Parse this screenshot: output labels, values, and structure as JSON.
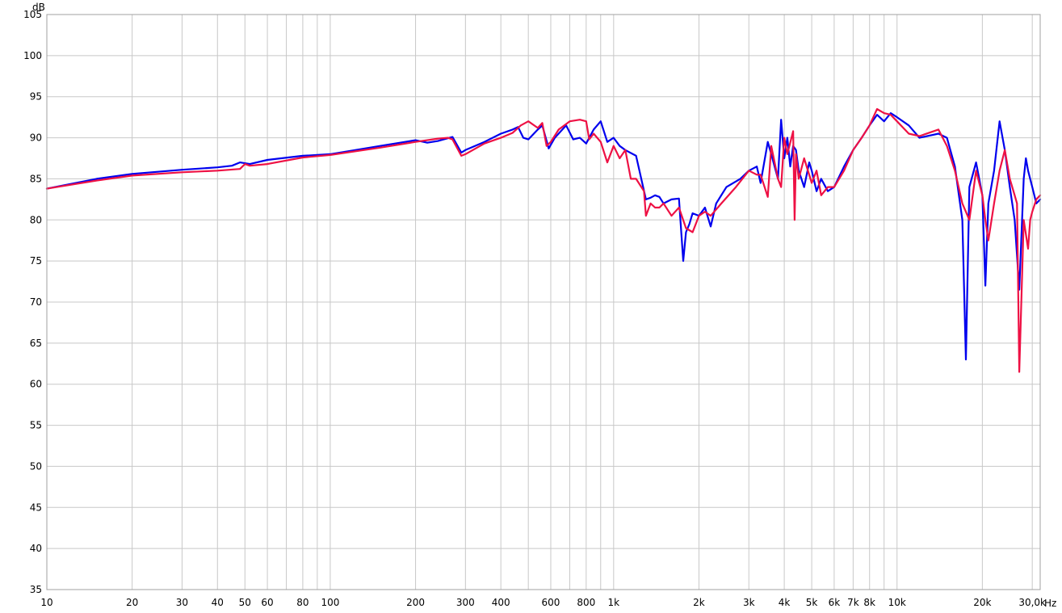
{
  "chart_data": {
    "type": "line",
    "title": "",
    "xlabel": "",
    "ylabel": "",
    "x_unit": "Hz",
    "y_unit": "dB",
    "x_scale": "log",
    "xlim": [
      10,
      32000
    ],
    "ylim": [
      35,
      105
    ],
    "grid": true,
    "legend": "none",
    "y_ticks": [
      35,
      40,
      45,
      50,
      55,
      60,
      65,
      70,
      75,
      80,
      85,
      90,
      95,
      100,
      105
    ],
    "x_ticks": [
      {
        "value": 10,
        "label": "10"
      },
      {
        "value": 20,
        "label": "20"
      },
      {
        "value": 30,
        "label": "30"
      },
      {
        "value": 40,
        "label": "40"
      },
      {
        "value": 50,
        "label": "50"
      },
      {
        "value": 60,
        "label": "60"
      },
      {
        "value": 80,
        "label": "80"
      },
      {
        "value": 100,
        "label": "100"
      },
      {
        "value": 200,
        "label": "200"
      },
      {
        "value": 300,
        "label": "300"
      },
      {
        "value": 400,
        "label": "400"
      },
      {
        "value": 600,
        "label": "600"
      },
      {
        "value": 800,
        "label": "800"
      },
      {
        "value": 1000,
        "label": "1k"
      },
      {
        "value": 2000,
        "label": "2k"
      },
      {
        "value": 3000,
        "label": "3k"
      },
      {
        "value": 4000,
        "label": "4k"
      },
      {
        "value": 5000,
        "label": "5k"
      },
      {
        "value": 6000,
        "label": "6k"
      },
      {
        "value": 7000,
        "label": "7k"
      },
      {
        "value": 8000,
        "label": "8k"
      },
      {
        "value": 10000,
        "label": "10k"
      },
      {
        "value": 20000,
        "label": "20k"
      },
      {
        "value": 30000,
        "label": "30,0k"
      }
    ],
    "x_minor_gridlines": [
      70,
      90,
      500,
      700,
      900,
      9000
    ],
    "series": [
      {
        "color": "#0000ee",
        "x": [
          10,
          15,
          20,
          30,
          40,
          45,
          48,
          52,
          60,
          80,
          100,
          150,
          200,
          220,
          240,
          270,
          290,
          300,
          350,
          400,
          440,
          460,
          480,
          500,
          540,
          560,
          590,
          620,
          680,
          720,
          760,
          800,
          850,
          900,
          950,
          1000,
          1050,
          1100,
          1200,
          1300,
          1350,
          1400,
          1450,
          1500,
          1600,
          1700,
          1760,
          1800,
          1850,
          1900,
          2000,
          2100,
          2200,
          2300,
          2500,
          2800,
          3000,
          3200,
          3300,
          3500,
          3600,
          3800,
          3900,
          4000,
          4100,
          4200,
          4300,
          4400,
          4500,
          4700,
          4900,
          5000,
          5200,
          5400,
          5700,
          6000,
          6500,
          7000,
          7500,
          8000,
          8500,
          9000,
          9500,
          10000,
          11000,
          12000,
          14000,
          15000,
          16000,
          17000,
          17500,
          18000,
          19000,
          20000,
          20500,
          21000,
          22000,
          23000,
          24000,
          25000,
          26000,
          27000,
          28000,
          28500,
          29000,
          30000,
          31000,
          32000
        ],
        "y": [
          83.8,
          85.0,
          85.6,
          86.1,
          86.4,
          86.6,
          87.0,
          86.8,
          87.3,
          87.8,
          88.0,
          89.0,
          89.7,
          89.4,
          89.6,
          90.1,
          88.2,
          88.5,
          89.5,
          90.5,
          91.0,
          91.3,
          90.0,
          89.8,
          91.0,
          91.5,
          88.7,
          90.0,
          91.5,
          89.8,
          90.0,
          89.3,
          91.0,
          92.0,
          89.5,
          90.0,
          89.0,
          88.5,
          87.8,
          82.5,
          82.7,
          83.0,
          82.8,
          82.0,
          82.5,
          82.6,
          75.0,
          78.5,
          79.5,
          80.8,
          80.5,
          81.5,
          79.2,
          82.0,
          84.0,
          85.0,
          86.0,
          86.5,
          84.5,
          89.5,
          88.0,
          85.0,
          92.2,
          87.5,
          90.0,
          86.5,
          89.0,
          88.5,
          86.0,
          84.0,
          87.0,
          86.0,
          83.5,
          85.0,
          83.5,
          84.0,
          86.5,
          88.5,
          90.0,
          91.5,
          92.8,
          92.0,
          93.0,
          92.5,
          91.5,
          90.0,
          90.5,
          90.0,
          86.5,
          80.0,
          63.0,
          84.0,
          87.0,
          83.0,
          72.0,
          82.0,
          86.0,
          92.0,
          88.5,
          84.0,
          80.0,
          71.5,
          85.0,
          87.5,
          86.0,
          84.0,
          82.0,
          82.5
        ]
      },
      {
        "color": "#ee1144",
        "x": [
          10,
          15,
          20,
          30,
          40,
          48,
          50,
          52,
          60,
          80,
          100,
          150,
          200,
          240,
          260,
          270,
          290,
          300,
          350,
          400,
          440,
          470,
          500,
          540,
          560,
          580,
          600,
          640,
          700,
          760,
          800,
          820,
          850,
          900,
          950,
          1000,
          1050,
          1100,
          1150,
          1200,
          1280,
          1300,
          1350,
          1400,
          1450,
          1500,
          1600,
          1700,
          1800,
          1900,
          2000,
          2100,
          2200,
          2400,
          2700,
          3000,
          3200,
          3300,
          3500,
          3600,
          3800,
          3900,
          4000,
          4100,
          4300,
          4350,
          4400,
          4500,
          4700,
          5000,
          5200,
          5400,
          5700,
          6000,
          6500,
          7000,
          7500,
          8000,
          8500,
          9000,
          9500,
          10000,
          11000,
          12000,
          14000,
          15000,
          16000,
          17000,
          18000,
          19000,
          20000,
          20500,
          21000,
          22000,
          23000,
          24000,
          25000,
          26000,
          26500,
          27000,
          28000,
          29000,
          29500,
          30000,
          31000,
          32000
        ],
        "y": [
          83.8,
          84.8,
          85.4,
          85.8,
          86.0,
          86.2,
          86.8,
          86.6,
          86.8,
          87.6,
          87.9,
          88.8,
          89.5,
          89.9,
          90.0,
          89.8,
          87.8,
          88.0,
          89.3,
          90.0,
          90.6,
          91.5,
          92.0,
          91.2,
          91.8,
          89.0,
          89.5,
          91.0,
          92.0,
          92.2,
          92.0,
          89.8,
          90.5,
          89.5,
          87.0,
          89.0,
          87.5,
          88.5,
          85.0,
          85.0,
          83.5,
          80.5,
          82.0,
          81.5,
          81.5,
          82.0,
          80.5,
          81.5,
          79.0,
          78.5,
          80.5,
          81.0,
          80.5,
          82.0,
          84.0,
          86.0,
          85.5,
          85.5,
          82.8,
          89.0,
          85.0,
          84.0,
          90.0,
          88.0,
          90.8,
          80.0,
          88.0,
          85.0,
          87.5,
          84.5,
          86.0,
          83.0,
          84.0,
          84.0,
          86.0,
          88.5,
          90.0,
          91.5,
          93.5,
          93.0,
          92.8,
          92.0,
          90.5,
          90.2,
          91.0,
          89.0,
          86.0,
          82.0,
          80.0,
          86.0,
          83.0,
          80.0,
          77.5,
          82.0,
          86.0,
          88.5,
          85.0,
          83.0,
          82.0,
          61.5,
          80.0,
          76.5,
          80.0,
          81.0,
          82.5,
          83.0
        ]
      }
    ]
  }
}
